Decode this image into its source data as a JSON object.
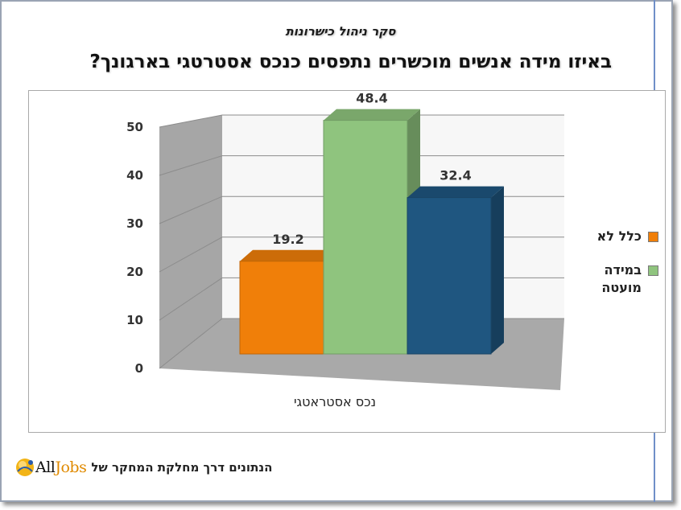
{
  "survey_title": "סקר ניהול כישרונות",
  "question": "באיזו מידה אנשים מוכשרים נתפסים כנכס אסטרטגי בארגונך?",
  "footer_text": "הנתונים דרך מחלקת המחקר של",
  "logo": {
    "text_all": "All",
    "text_jobs": "Jobs"
  },
  "chart_data": {
    "type": "bar",
    "categories": [
      "נכס אסטראטגי"
    ],
    "series": [
      {
        "name": "כלל לא",
        "values": [
          19.2
        ],
        "color": "#f07f09"
      },
      {
        "name": "במידה מועטה",
        "values": [
          48.4
        ],
        "color": "#8fc47e"
      },
      {
        "name": "",
        "values": [
          32.4
        ],
        "color": "#1f5680"
      }
    ],
    "data_labels": [
      "19.2",
      "48.4",
      "32.4"
    ],
    "yticks": [
      "0",
      "10",
      "20",
      "30",
      "40",
      "50"
    ],
    "ylim": [
      0,
      50
    ],
    "grid": true,
    "legend_position": "right",
    "legend_lines": [
      [
        "כלל לא"
      ],
      [
        "במידה",
        "מועטה"
      ]
    ]
  }
}
